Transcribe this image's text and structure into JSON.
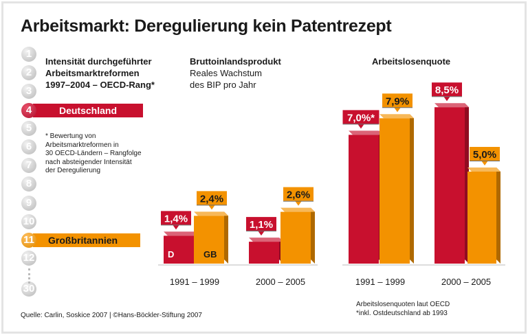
{
  "title": "Arbeitsmarkt: Deregulierung kein Patentrezept",
  "ranking": {
    "heading": [
      "Intensität durchgeführter",
      "Arbeitsmarktreformen",
      "1997–2004 – OECD-Rang*"
    ],
    "ranks": [
      "1",
      "2",
      "3",
      "4",
      "5",
      "6",
      "7",
      "8",
      "9",
      "10",
      "11",
      "12",
      "30"
    ],
    "highlight_de": {
      "rank": "4",
      "label": "Deutschland",
      "color": "#c8102e"
    },
    "highlight_gb": {
      "rank": "11",
      "label": "Großbritannien",
      "color": "#f39200"
    },
    "footnote": [
      "* Bewertung von",
      "Arbeitsmarktreformen in",
      "30 OECD-Ländern – Rangfolge",
      "nach absteigender Intensität",
      "der Deregulierung"
    ]
  },
  "chart_data": [
    {
      "type": "bar",
      "title": "Bruttoinlandsprodukt",
      "subtitle": [
        "Reales Wachstum",
        "des BIP pro Jahr"
      ],
      "categories": [
        "1991 – 1999",
        "2000 – 2005"
      ],
      "series": [
        {
          "name": "D",
          "color": "#c8102e",
          "values": [
            1.4,
            1.1
          ],
          "labels": [
            "1,4%",
            "1,1%"
          ]
        },
        {
          "name": "GB",
          "color": "#f39200",
          "values": [
            2.4,
            2.6
          ],
          "labels": [
            "2,4%",
            "2,6%"
          ]
        }
      ]
    },
    {
      "type": "bar",
      "title": "Arbeitslosenquote",
      "categories": [
        "1991 – 1999",
        "2000 – 2005"
      ],
      "series": [
        {
          "color": "#c8102e",
          "values": [
            7.0,
            8.5
          ],
          "labels": [
            "7,0%*",
            "8,5%"
          ]
        },
        {
          "color": "#f39200",
          "values": [
            7.9,
            5.0
          ],
          "labels": [
            "7,9%",
            "5,0%"
          ]
        }
      ],
      "notes": [
        "Arbeitslosenquoten laut OECD",
        "*inkl. Ostdeutschland ab 1993"
      ]
    }
  ],
  "source": "Quelle: Carlin, Soskice 2007 | ©Hans-Böckler-Stiftung 2007"
}
